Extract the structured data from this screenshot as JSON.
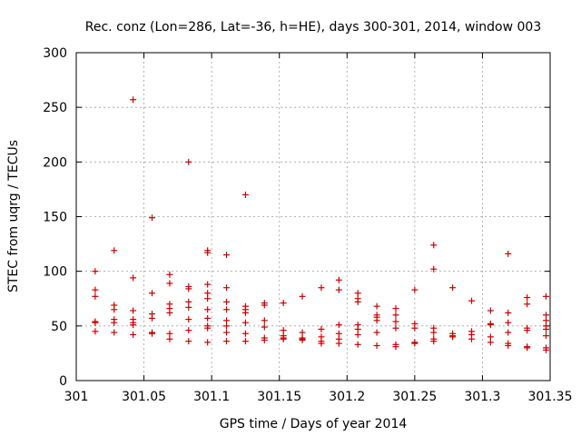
{
  "chart_data": {
    "type": "scatter",
    "title": "Rec. conz (Lon=286, Lat=-36, h=HE), days 300-301, 2014, window 003",
    "xlabel": "GPS time / Days of year 2014",
    "ylabel": "STEC from uqrg / TECUs",
    "xlim": [
      301,
      301.35
    ],
    "ylim": [
      0,
      300
    ],
    "grid": true,
    "marker": "+",
    "color": "#cc0000",
    "x_ticks": [
      301,
      301.05,
      301.1,
      301.15,
      301.2,
      301.25,
      301.3,
      301.35
    ],
    "x_tick_labels": [
      "301",
      "301.05",
      "301.1",
      "301.15",
      "301.2",
      "301.25",
      "301.3",
      "301.35"
    ],
    "y_ticks": [
      0,
      50,
      100,
      150,
      200,
      250,
      300
    ],
    "y_tick_labels": [
      "0",
      "50",
      "100",
      "150",
      "200",
      "250",
      "300"
    ],
    "points": [
      [
        301.014,
        100
      ],
      [
        301.014,
        83
      ],
      [
        301.014,
        77
      ],
      [
        301.014,
        54
      ],
      [
        301.014,
        53
      ],
      [
        301.014,
        45
      ],
      [
        301.028,
        119
      ],
      [
        301.028,
        69
      ],
      [
        301.028,
        65
      ],
      [
        301.028,
        56
      ],
      [
        301.028,
        53
      ],
      [
        301.028,
        44
      ],
      [
        301.042,
        257
      ],
      [
        301.042,
        94
      ],
      [
        301.042,
        64
      ],
      [
        301.042,
        56
      ],
      [
        301.042,
        53
      ],
      [
        301.042,
        51
      ],
      [
        301.042,
        42
      ],
      [
        301.056,
        149
      ],
      [
        301.056,
        80
      ],
      [
        301.056,
        61
      ],
      [
        301.056,
        57
      ],
      [
        301.056,
        44
      ],
      [
        301.056,
        43
      ],
      [
        301.069,
        97
      ],
      [
        301.069,
        89
      ],
      [
        301.069,
        70
      ],
      [
        301.069,
        66
      ],
      [
        301.069,
        62
      ],
      [
        301.069,
        43
      ],
      [
        301.069,
        38
      ],
      [
        301.083,
        200
      ],
      [
        301.083,
        86
      ],
      [
        301.083,
        84
      ],
      [
        301.083,
        72
      ],
      [
        301.083,
        67
      ],
      [
        301.083,
        56
      ],
      [
        301.083,
        46
      ],
      [
        301.083,
        36
      ],
      [
        301.097,
        119
      ],
      [
        301.097,
        117
      ],
      [
        301.097,
        88
      ],
      [
        301.097,
        80
      ],
      [
        301.097,
        75
      ],
      [
        301.097,
        65
      ],
      [
        301.097,
        57
      ],
      [
        301.097,
        50
      ],
      [
        301.097,
        48
      ],
      [
        301.097,
        35
      ],
      [
        301.111,
        115
      ],
      [
        301.111,
        85
      ],
      [
        301.111,
        72
      ],
      [
        301.111,
        65
      ],
      [
        301.111,
        55
      ],
      [
        301.111,
        50
      ],
      [
        301.111,
        44
      ],
      [
        301.111,
        36
      ],
      [
        301.125,
        170
      ],
      [
        301.125,
        68
      ],
      [
        301.125,
        65
      ],
      [
        301.125,
        62
      ],
      [
        301.125,
        53
      ],
      [
        301.125,
        43
      ],
      [
        301.125,
        36
      ],
      [
        301.139,
        71
      ],
      [
        301.139,
        69
      ],
      [
        301.139,
        55
      ],
      [
        301.139,
        49
      ],
      [
        301.139,
        39
      ],
      [
        301.139,
        37
      ],
      [
        301.153,
        71
      ],
      [
        301.153,
        46
      ],
      [
        301.153,
        41
      ],
      [
        301.153,
        39
      ],
      [
        301.153,
        38
      ],
      [
        301.167,
        77
      ],
      [
        301.167,
        44
      ],
      [
        301.167,
        39
      ],
      [
        301.167,
        38
      ],
      [
        301.167,
        37
      ],
      [
        301.181,
        85
      ],
      [
        301.181,
        47
      ],
      [
        301.181,
        40
      ],
      [
        301.181,
        36
      ],
      [
        301.181,
        34
      ],
      [
        301.194,
        92
      ],
      [
        301.194,
        83
      ],
      [
        301.194,
        51
      ],
      [
        301.194,
        43
      ],
      [
        301.194,
        38
      ],
      [
        301.194,
        34
      ],
      [
        301.208,
        80
      ],
      [
        301.208,
        75
      ],
      [
        301.208,
        72
      ],
      [
        301.208,
        51
      ],
      [
        301.208,
        47
      ],
      [
        301.208,
        42
      ],
      [
        301.208,
        33
      ],
      [
        301.222,
        68
      ],
      [
        301.222,
        60
      ],
      [
        301.222,
        58
      ],
      [
        301.222,
        55
      ],
      [
        301.222,
        44
      ],
      [
        301.222,
        32
      ],
      [
        301.236,
        66
      ],
      [
        301.236,
        60
      ],
      [
        301.236,
        54
      ],
      [
        301.236,
        48
      ],
      [
        301.236,
        33
      ],
      [
        301.236,
        31
      ],
      [
        301.25,
        83
      ],
      [
        301.25,
        52
      ],
      [
        301.25,
        48
      ],
      [
        301.25,
        35
      ],
      [
        301.25,
        34
      ],
      [
        301.264,
        124
      ],
      [
        301.264,
        102
      ],
      [
        301.264,
        48
      ],
      [
        301.264,
        44
      ],
      [
        301.264,
        38
      ],
      [
        301.264,
        36
      ],
      [
        301.278,
        85
      ],
      [
        301.278,
        43
      ],
      [
        301.278,
        41
      ],
      [
        301.278,
        40
      ],
      [
        301.292,
        73
      ],
      [
        301.292,
        45
      ],
      [
        301.292,
        42
      ],
      [
        301.292,
        38
      ],
      [
        301.306,
        64
      ],
      [
        301.306,
        52
      ],
      [
        301.306,
        51
      ],
      [
        301.306,
        40
      ],
      [
        301.306,
        35
      ],
      [
        301.319,
        116
      ],
      [
        301.319,
        62
      ],
      [
        301.319,
        53
      ],
      [
        301.319,
        44
      ],
      [
        301.319,
        34
      ],
      [
        301.319,
        32
      ],
      [
        301.333,
        76
      ],
      [
        301.333,
        70
      ],
      [
        301.333,
        48
      ],
      [
        301.333,
        46
      ],
      [
        301.333,
        31
      ],
      [
        301.333,
        30
      ],
      [
        301.347,
        77
      ],
      [
        301.347,
        60
      ],
      [
        301.347,
        55
      ],
      [
        301.347,
        50
      ],
      [
        301.347,
        47
      ],
      [
        301.347,
        41
      ],
      [
        301.347,
        30
      ],
      [
        301.347,
        28
      ]
    ]
  }
}
